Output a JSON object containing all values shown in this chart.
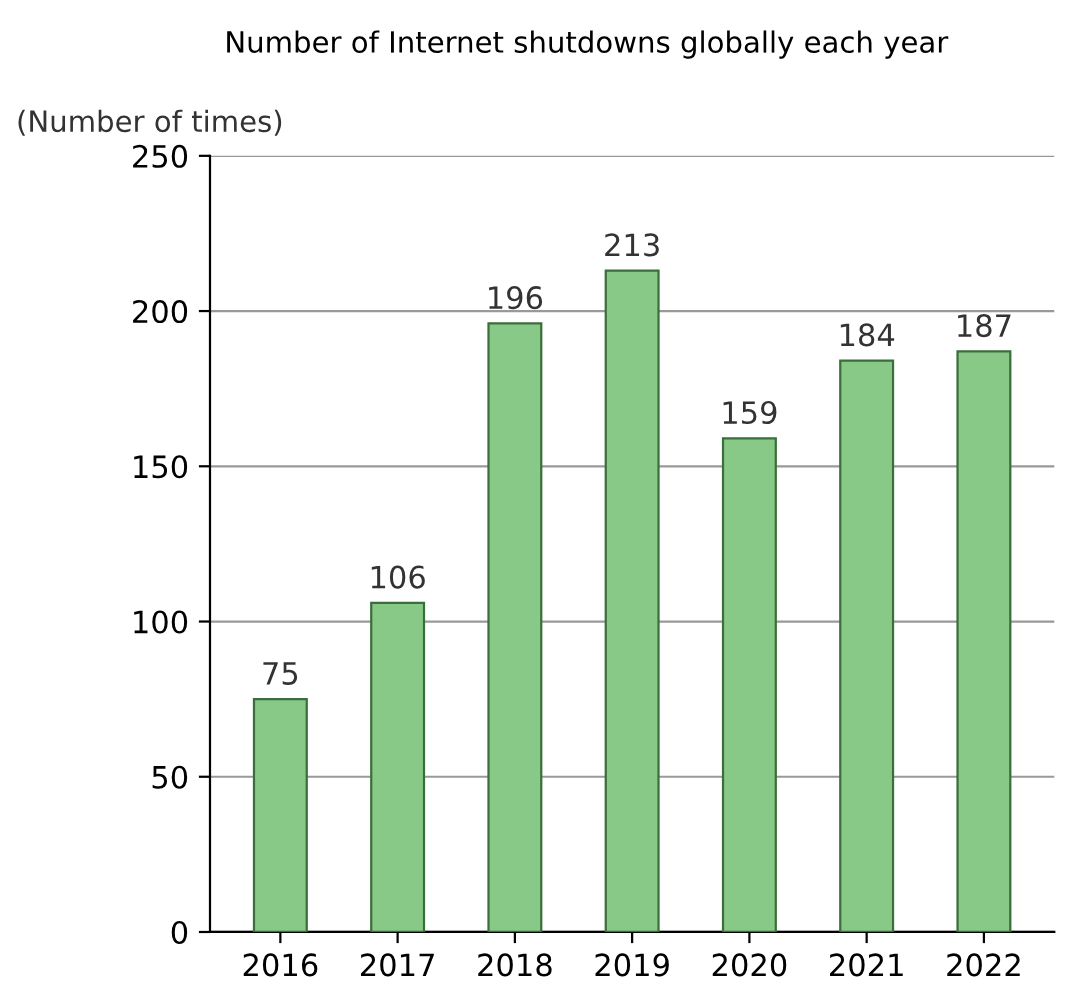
{
  "chart_data": {
    "type": "bar",
    "title": "Number of Internet shutdowns globally each year",
    "ylabel": "(Number of times)",
    "categories": [
      "2016",
      "2017",
      "2018",
      "2019",
      "2020",
      "2021",
      "2022"
    ],
    "values": [
      75,
      106,
      196,
      213,
      159,
      184,
      187
    ],
    "color": "#88c988",
    "ylim": [
      0,
      250
    ],
    "yticks": [
      0,
      50,
      100,
      150,
      200,
      250
    ],
    "grid": "y",
    "data_labels": true
  }
}
